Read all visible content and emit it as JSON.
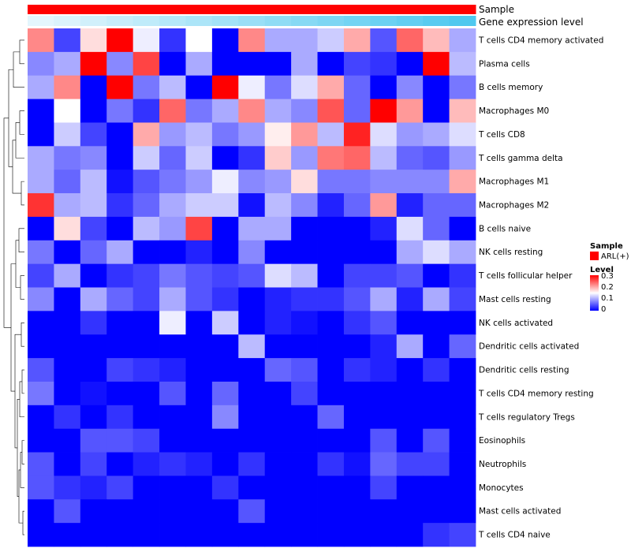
{
  "chart_data": {
    "type": "heatmap",
    "annotation_tracks": [
      {
        "name": "Sample",
        "description": "all columns ARL(+)"
      },
      {
        "name": "Gene expression level",
        "description": "gradient light to saturated cyan across columns"
      }
    ],
    "legend": {
      "sample_title": "Sample",
      "sample_label": "ARL(+)",
      "level_title": "Level",
      "ticks": [
        "0.3",
        "0.2",
        "0.1",
        "0"
      ],
      "range": [
        0,
        0.3
      ]
    },
    "rows": [
      "T cells CD4 memory activated",
      "Plasma cells",
      "B cells memory",
      "Macrophages M0",
      "T cells CD8",
      "T cells gamma delta",
      "Macrophages M1",
      "Macrophages M2",
      "B cells naive",
      "NK cells resting",
      "T cells follicular helper",
      "Mast cells resting",
      "NK cells activated",
      "Dendritic cells activated",
      "Dendritic cells resting",
      "T cells CD4 memory resting",
      "T cells regulatory  Tregs",
      "Eosinophils",
      "Neutrophils",
      "Monocytes",
      "Mast cells activated",
      "T cells CD4 naive"
    ],
    "columns": 17,
    "values": [
      [
        0.22,
        0.04,
        0.17,
        0.3,
        0.14,
        0.03,
        0.15,
        0.0,
        0.22,
        0.1,
        0.1,
        0.12,
        0.2,
        0.05,
        0.24,
        0.19,
        0.1
      ],
      [
        0.08,
        0.1,
        0.3,
        0.08,
        0.26,
        0.0,
        0.1,
        0.0,
        0.0,
        0.0,
        0.1,
        0.0,
        0.04,
        0.03,
        0.0,
        0.3,
        0.11
      ],
      [
        0.1,
        0.22,
        0.0,
        0.3,
        0.07,
        0.11,
        0.0,
        0.3,
        0.14,
        0.07,
        0.13,
        0.2,
        0.06,
        0.0,
        0.08,
        0.0,
        0.07
      ],
      [
        0.0,
        0.15,
        0.0,
        0.07,
        0.03,
        0.24,
        0.07,
        0.1,
        0.22,
        0.1,
        0.08,
        0.25,
        0.06,
        0.3,
        0.21,
        0.0,
        0.19
      ],
      [
        0.0,
        0.12,
        0.04,
        0.0,
        0.2,
        0.09,
        0.11,
        0.07,
        0.09,
        0.16,
        0.21,
        0.11,
        0.28,
        0.13,
        0.09,
        0.1,
        0.13
      ],
      [
        0.1,
        0.07,
        0.08,
        0.0,
        0.12,
        0.06,
        0.12,
        0.0,
        0.03,
        0.18,
        0.09,
        0.23,
        0.24,
        0.11,
        0.06,
        0.05,
        0.09
      ],
      [
        0.1,
        0.06,
        0.11,
        0.01,
        0.05,
        0.07,
        0.09,
        0.14,
        0.08,
        0.09,
        0.17,
        0.07,
        0.07,
        0.08,
        0.08,
        0.08,
        0.2
      ],
      [
        0.27,
        0.1,
        0.11,
        0.03,
        0.06,
        0.1,
        0.12,
        0.12,
        0.01,
        0.11,
        0.08,
        0.02,
        0.06,
        0.21,
        0.02,
        0.06,
        0.06
      ],
      [
        0.0,
        0.17,
        0.04,
        0.0,
        0.11,
        0.09,
        0.26,
        0.0,
        0.1,
        0.1,
        0.0,
        0.0,
        0.0,
        0.02,
        0.13,
        0.06,
        0.0
      ],
      [
        0.07,
        0.0,
        0.06,
        0.1,
        0.0,
        0.0,
        0.02,
        0.0,
        0.08,
        0.0,
        0.0,
        0.0,
        0.0,
        0.0,
        0.1,
        0.13,
        0.1
      ],
      [
        0.04,
        0.1,
        0.0,
        0.03,
        0.04,
        0.07,
        0.05,
        0.04,
        0.05,
        0.13,
        0.11,
        0.0,
        0.04,
        0.04,
        0.05,
        0.0,
        0.03
      ],
      [
        0.08,
        0.0,
        0.1,
        0.06,
        0.04,
        0.1,
        0.05,
        0.03,
        0.0,
        0.02,
        0.03,
        0.03,
        0.05,
        0.1,
        0.02,
        0.1,
        0.04
      ],
      [
        0.0,
        0.0,
        0.03,
        0.0,
        0.0,
        0.14,
        0.0,
        0.12,
        0.0,
        0.02,
        0.01,
        0.0,
        0.03,
        0.05,
        0.0,
        0.0,
        0.0
      ],
      [
        0.0,
        0.0,
        0.0,
        0.0,
        0.0,
        0.0,
        0.0,
        0.0,
        0.11,
        0.0,
        0.0,
        0.0,
        0.0,
        0.02,
        0.1,
        0.0,
        0.06
      ],
      [
        0.05,
        0.0,
        0.0,
        0.04,
        0.03,
        0.02,
        0.0,
        0.0,
        0.0,
        0.06,
        0.05,
        0.0,
        0.03,
        0.02,
        0.0,
        0.03,
        0.0
      ],
      [
        0.07,
        0.0,
        0.01,
        0.0,
        0.0,
        0.05,
        0.0,
        0.06,
        0.0,
        0.0,
        0.04,
        0.0,
        0.0,
        0.0,
        0.0,
        0.0,
        0.0
      ],
      [
        0.0,
        0.03,
        0.0,
        0.03,
        0.0,
        0.0,
        0.0,
        0.08,
        0.0,
        0.0,
        0.0,
        0.06,
        0.0,
        0.0,
        0.0,
        0.0,
        0.0
      ],
      [
        0.0,
        0.0,
        0.05,
        0.05,
        0.04,
        0.0,
        0.0,
        0.0,
        0.0,
        0.0,
        0.0,
        0.0,
        0.0,
        0.05,
        0.0,
        0.05,
        0.0
      ],
      [
        0.05,
        0.0,
        0.04,
        0.0,
        0.02,
        0.03,
        0.02,
        0.0,
        0.03,
        0.0,
        0.0,
        0.03,
        0.01,
        0.06,
        0.04,
        0.04,
        0.0
      ],
      [
        0.05,
        0.03,
        0.02,
        0.04,
        0.0,
        0.0,
        0.0,
        0.03,
        0.0,
        0.0,
        0.0,
        0.0,
        0.0,
        0.04,
        0.0,
        0.0,
        0.0
      ],
      [
        0.0,
        0.05,
        0.0,
        0.0,
        0.0,
        0.0,
        0.0,
        0.0,
        0.05,
        0.0,
        0.0,
        0.0,
        0.0,
        0.0,
        0.0,
        0.0,
        0.0
      ],
      [
        0.0,
        0.0,
        0.0,
        0.0,
        0.0,
        0.0,
        0.0,
        0.0,
        0.0,
        0.0,
        0.0,
        0.0,
        0.0,
        0.0,
        0.0,
        0.03,
        0.04
      ]
    ]
  },
  "colors": {
    "low": "#0000ff",
    "mid": "#ffffff",
    "high": "#ff0000",
    "sample_track": "#ff0000",
    "expression_start": "#e4f6fd",
    "expression_end": "#4fc8ef"
  }
}
